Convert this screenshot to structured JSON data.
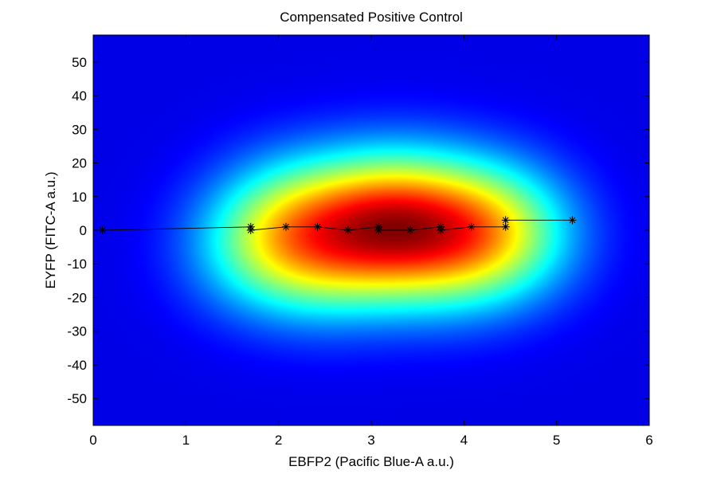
{
  "chart_data": {
    "type": "heatmap",
    "title": "Compensated Positive Control",
    "xlabel": "EBFP2 (Pacific Blue-A a.u.)",
    "ylabel": "EYFP (FITC-A a.u.)",
    "xlim": [
      0,
      6
    ],
    "ylim": [
      -58,
      58
    ],
    "x_ticks": [
      0,
      1,
      2,
      3,
      4,
      5,
      6
    ],
    "y_ticks": [
      -50,
      -40,
      -30,
      -20,
      -10,
      0,
      10,
      20,
      30,
      40,
      50
    ],
    "colormap": "jet",
    "grid": false,
    "legend": "none",
    "density_blobs": [
      {
        "x": 1.8,
        "y": -6,
        "weight": 0.8
      },
      {
        "x": 2.15,
        "y": 4,
        "weight": 0.9
      },
      {
        "x": 2.5,
        "y": -8,
        "weight": 0.95
      },
      {
        "x": 2.9,
        "y": 5,
        "weight": 1.0
      },
      {
        "x": 3.2,
        "y": -4,
        "weight": 1.0
      },
      {
        "x": 3.5,
        "y": 6,
        "weight": 1.0
      },
      {
        "x": 3.85,
        "y": -6,
        "weight": 0.95
      },
      {
        "x": 4.25,
        "y": 3,
        "weight": 0.85
      },
      {
        "x": 4.5,
        "y": -3,
        "weight": 0.7
      }
    ],
    "series": [
      {
        "type": "line",
        "marker": "*",
        "color": "#000000",
        "x": [
          0.1,
          1.7,
          1.7,
          2.08,
          2.42,
          2.75,
          3.08,
          3.08,
          3.42,
          3.75,
          3.75,
          4.08,
          4.45,
          4.45,
          5.17
        ],
        "y": [
          0,
          1,
          0,
          1,
          1,
          0,
          1,
          0,
          0,
          1,
          0,
          1,
          1,
          3,
          3
        ]
      }
    ]
  }
}
